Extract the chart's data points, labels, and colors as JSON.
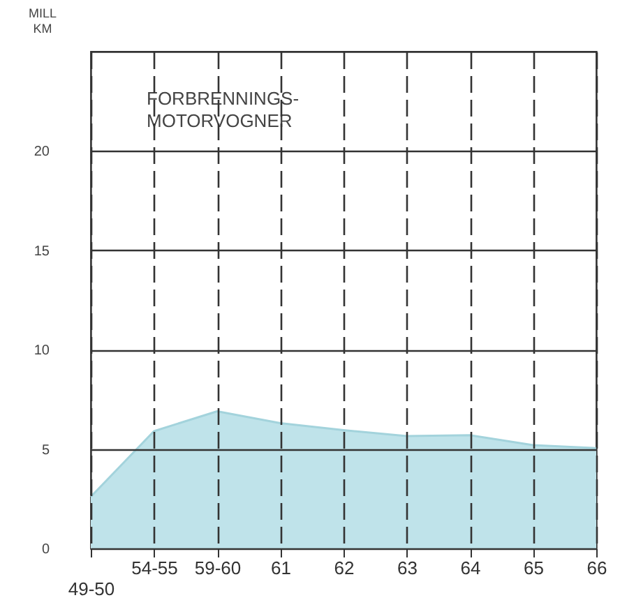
{
  "chart_data": {
    "type": "area",
    "ylabel": "MILL KM",
    "annotations": [
      "FORBRENNINGS-MOTORVOGNER"
    ],
    "categories": [
      "49-50",
      "54-55",
      "59-60",
      "61",
      "62",
      "63",
      "64",
      "65",
      "66"
    ],
    "values": [
      2.6,
      5.9,
      6.9,
      6.3,
      5.95,
      5.65,
      5.7,
      5.2,
      5.05
    ],
    "color": "#bfe3ea",
    "ylim": [
      0,
      25
    ],
    "yticks": [
      0,
      5,
      10,
      15,
      20
    ],
    "grid": true
  }
}
